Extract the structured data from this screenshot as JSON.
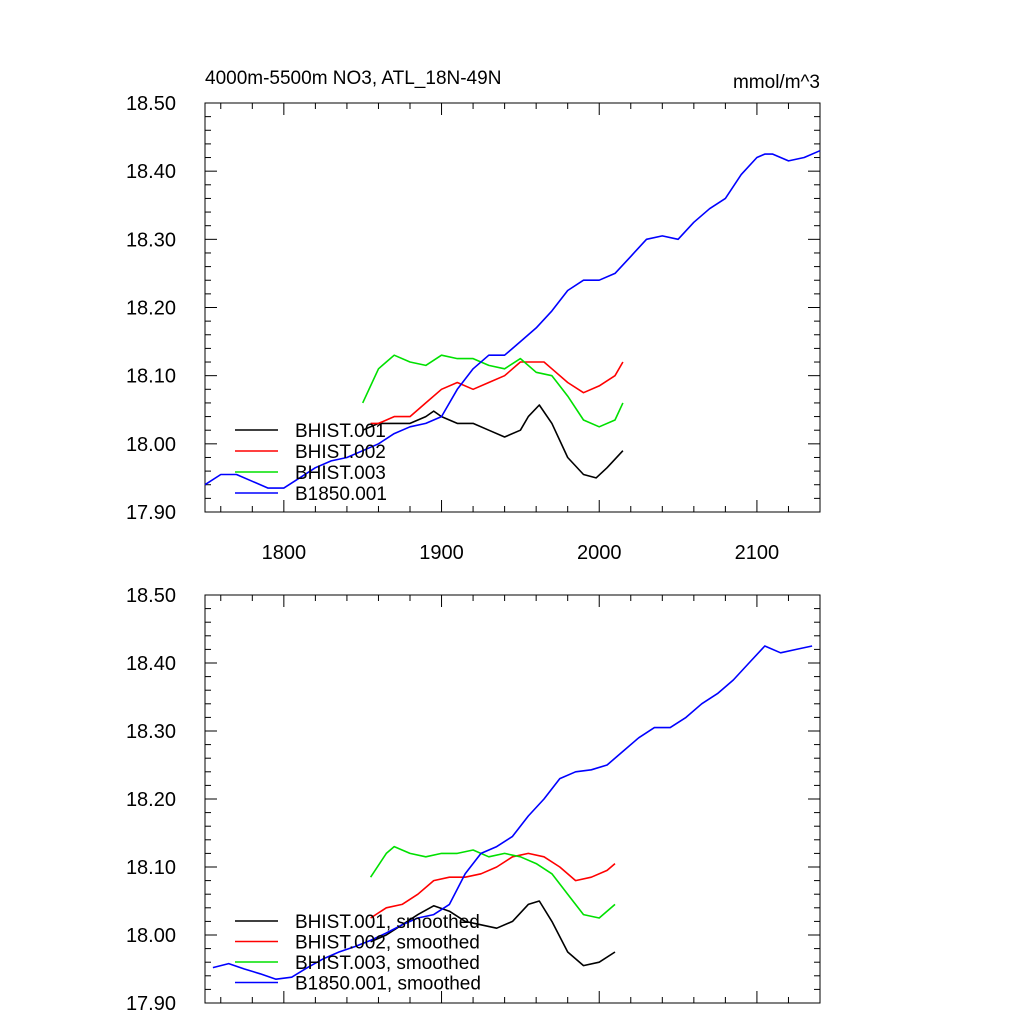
{
  "chart_data": [
    {
      "type": "line",
      "title_left": "4000m-5500m NO3, ATL_18N-49N",
      "title_right": "mmol/m^3",
      "xlim": [
        1750,
        2140
      ],
      "ylim": [
        17.9,
        18.5
      ],
      "x_ticks": [
        1800,
        1900,
        2000,
        2100
      ],
      "x_tick_labels": [
        "1800",
        "1900",
        "2000",
        "2100"
      ],
      "y_ticks": [
        17.9,
        18.0,
        18.1,
        18.2,
        18.3,
        18.4,
        18.5
      ],
      "y_tick_labels": [
        "17.90",
        "18.00",
        "18.10",
        "18.20",
        "18.30",
        "18.40",
        "18.50"
      ],
      "legend_position": "bottom-left",
      "series": [
        {
          "name": "BHIST.001",
          "color": "#000000",
          "x": [
            1850,
            1860,
            1870,
            1880,
            1890,
            1895,
            1900,
            1910,
            1920,
            1930,
            1940,
            1950,
            1955,
            1962,
            1970,
            1980,
            1990,
            1998,
            2005,
            2015
          ],
          "y": [
            18.02,
            18.03,
            18.03,
            18.03,
            18.04,
            18.048,
            18.04,
            18.03,
            18.03,
            18.02,
            18.01,
            18.02,
            18.04,
            18.057,
            18.03,
            17.98,
            17.955,
            17.95,
            17.965,
            17.99
          ]
        },
        {
          "name": "BHIST.002",
          "color": "#ff0000",
          "x": [
            1855,
            1860,
            1870,
            1880,
            1890,
            1900,
            1910,
            1920,
            1930,
            1940,
            1950,
            1960,
            1965,
            1970,
            1980,
            1990,
            2000,
            2010,
            2015
          ],
          "y": [
            18.03,
            18.03,
            18.04,
            18.04,
            18.06,
            18.08,
            18.09,
            18.08,
            18.09,
            18.1,
            18.12,
            18.12,
            18.12,
            18.11,
            18.09,
            18.075,
            18.085,
            18.1,
            18.12
          ]
        },
        {
          "name": "BHIST.003",
          "color": "#00e000",
          "x": [
            1850,
            1860,
            1865,
            1870,
            1880,
            1890,
            1900,
            1910,
            1920,
            1930,
            1940,
            1950,
            1960,
            1970,
            1980,
            1990,
            2000,
            2010,
            2015
          ],
          "y": [
            18.06,
            18.11,
            18.12,
            18.13,
            18.12,
            18.115,
            18.13,
            18.125,
            18.125,
            18.115,
            18.11,
            18.125,
            18.105,
            18.1,
            18.07,
            18.035,
            18.025,
            18.035,
            18.06
          ]
        },
        {
          "name": "B1850.001",
          "color": "#0000ff",
          "x": [
            1750,
            1760,
            1770,
            1780,
            1790,
            1800,
            1810,
            1820,
            1830,
            1840,
            1850,
            1860,
            1870,
            1880,
            1890,
            1900,
            1910,
            1920,
            1930,
            1940,
            1950,
            1960,
            1970,
            1980,
            1990,
            2000,
            2010,
            2020,
            2030,
            2040,
            2050,
            2060,
            2070,
            2080,
            2090,
            2100,
            2105,
            2110,
            2120,
            2130,
            2140
          ],
          "y": [
            17.94,
            17.955,
            17.955,
            17.945,
            17.935,
            17.935,
            17.95,
            17.965,
            17.975,
            17.98,
            17.99,
            18.0,
            18.015,
            18.025,
            18.03,
            18.04,
            18.08,
            18.11,
            18.13,
            18.13,
            18.15,
            18.17,
            18.195,
            18.225,
            18.24,
            18.24,
            18.25,
            18.275,
            18.3,
            18.305,
            18.3,
            18.325,
            18.345,
            18.36,
            18.395,
            18.42,
            18.425,
            18.425,
            18.415,
            18.42,
            18.43
          ]
        }
      ]
    },
    {
      "type": "line",
      "xlim": [
        1750,
        2140
      ],
      "ylim": [
        17.9,
        18.5
      ],
      "x_ticks": [
        1800,
        1900,
        2000,
        2100
      ],
      "y_ticks": [
        17.9,
        18.0,
        18.1,
        18.2,
        18.3,
        18.4,
        18.5
      ],
      "y_tick_labels": [
        "17.90",
        "18.00",
        "18.10",
        "18.20",
        "18.30",
        "18.40",
        "18.50"
      ],
      "legend_position": "bottom-left",
      "series": [
        {
          "name": "BHIST.001, smoothed",
          "color": "#000000",
          "x": [
            1855,
            1865,
            1875,
            1885,
            1895,
            1905,
            1915,
            1925,
            1935,
            1945,
            1955,
            1962,
            1970,
            1980,
            1990,
            2000,
            2010
          ],
          "y": [
            17.99,
            18.0,
            18.015,
            18.03,
            18.043,
            18.035,
            18.02,
            18.015,
            18.01,
            18.02,
            18.045,
            18.05,
            18.02,
            17.975,
            17.955,
            17.96,
            17.975
          ]
        },
        {
          "name": "BHIST.002, smoothed",
          "color": "#ff0000",
          "x": [
            1855,
            1865,
            1875,
            1885,
            1895,
            1905,
            1915,
            1925,
            1935,
            1945,
            1955,
            1965,
            1975,
            1985,
            1995,
            2005,
            2010
          ],
          "y": [
            18.025,
            18.04,
            18.045,
            18.06,
            18.08,
            18.085,
            18.085,
            18.09,
            18.1,
            18.115,
            18.12,
            18.115,
            18.1,
            18.08,
            18.085,
            18.095,
            18.105
          ]
        },
        {
          "name": "BHIST.003, smoothed",
          "color": "#00e000",
          "x": [
            1855,
            1865,
            1870,
            1880,
            1890,
            1900,
            1910,
            1920,
            1930,
            1940,
            1950,
            1960,
            1970,
            1980,
            1990,
            2000,
            2010
          ],
          "y": [
            18.085,
            18.12,
            18.13,
            18.12,
            18.115,
            18.12,
            18.12,
            18.125,
            18.115,
            18.12,
            18.115,
            18.105,
            18.09,
            18.06,
            18.03,
            18.025,
            18.045
          ]
        },
        {
          "name": "B1850.001, smoothed",
          "color": "#0000ff",
          "x": [
            1755,
            1765,
            1775,
            1785,
            1795,
            1805,
            1815,
            1825,
            1835,
            1845,
            1855,
            1865,
            1875,
            1885,
            1895,
            1905,
            1915,
            1925,
            1935,
            1945,
            1955,
            1965,
            1975,
            1985,
            1995,
            2005,
            2015,
            2025,
            2035,
            2045,
            2055,
            2065,
            2075,
            2085,
            2095,
            2105,
            2115,
            2125,
            2135
          ],
          "y": [
            17.952,
            17.958,
            17.95,
            17.943,
            17.935,
            17.938,
            17.952,
            17.965,
            17.975,
            17.983,
            17.992,
            18.003,
            18.015,
            18.025,
            18.03,
            18.045,
            18.09,
            18.12,
            18.13,
            18.145,
            18.175,
            18.2,
            18.23,
            18.24,
            18.243,
            18.25,
            18.27,
            18.29,
            18.305,
            18.305,
            18.32,
            18.34,
            18.355,
            18.375,
            18.4,
            18.425,
            18.415,
            18.42,
            18.425
          ]
        }
      ]
    }
  ]
}
